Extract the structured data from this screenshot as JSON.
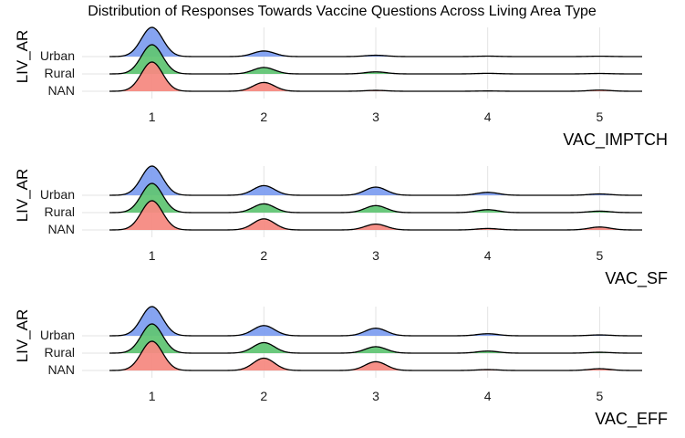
{
  "chart_data": {
    "type": "ridgeline",
    "title": "Distribution of Responses Towards Vaccine Questions Across Living Area Type",
    "ylabel": "LIV_AR",
    "categories": [
      "Urban",
      "Rural",
      "NAN"
    ],
    "x_ticks": [
      "1",
      "2",
      "3",
      "4",
      "5"
    ],
    "xlim": [
      0.62,
      5.38
    ],
    "colors": {
      "Urban": "#7f9ff0",
      "Rural": "#62c575",
      "NAN": "#f58a82"
    },
    "grid": true,
    "panels": [
      {
        "xlabel": "VAC_IMPTCH",
        "series": [
          {
            "name": "Urban",
            "peaks": [
              1.0,
              0.19,
              0.045,
              0.015,
              0.012
            ]
          },
          {
            "name": "Rural",
            "peaks": [
              1.0,
              0.22,
              0.07,
              0.02,
              0.015
            ]
          },
          {
            "name": "NAN",
            "peaks": [
              1.0,
              0.3,
              0.03,
              0.01,
              0.04
            ]
          }
        ]
      },
      {
        "xlabel": "VAC_SF",
        "series": [
          {
            "name": "Urban",
            "peaks": [
              1.0,
              0.33,
              0.28,
              0.1,
              0.045
            ]
          },
          {
            "name": "Rural",
            "peaks": [
              1.0,
              0.3,
              0.24,
              0.1,
              0.05
            ]
          },
          {
            "name": "NAN",
            "peaks": [
              1.0,
              0.38,
              0.2,
              0.05,
              0.1
            ]
          }
        ]
      },
      {
        "xlabel": "VAC_EFF",
        "series": [
          {
            "name": "Urban",
            "peaks": [
              1.0,
              0.35,
              0.26,
              0.07,
              0.03
            ]
          },
          {
            "name": "Rural",
            "peaks": [
              1.0,
              0.36,
              0.22,
              0.07,
              0.03
            ]
          },
          {
            "name": "NAN",
            "peaks": [
              1.0,
              0.42,
              0.3,
              0.03,
              0.06
            ]
          }
        ]
      }
    ]
  }
}
